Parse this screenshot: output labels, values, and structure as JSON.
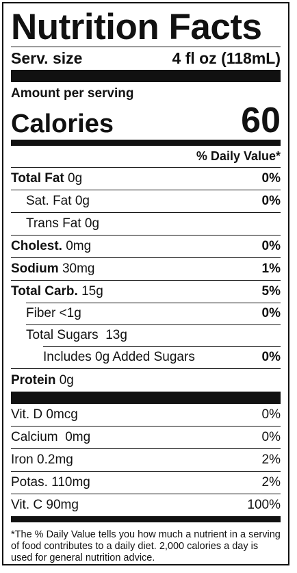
{
  "title": "Nutrition Facts",
  "serving": {
    "label": "Serv. size",
    "value": "4 fl oz (118mL)"
  },
  "amount_per_serving": "Amount per serving",
  "calories": {
    "label": "Calories",
    "value": "60"
  },
  "daily_value_header": "% Daily Value*",
  "nutrients": [
    {
      "name": "Total Fat",
      "amount": "0g",
      "dv": "0%"
    },
    {
      "name": "Sat. Fat",
      "amount": "0g",
      "dv": "0%"
    },
    {
      "name": "Trans Fat",
      "amount": "0g",
      "dv": ""
    },
    {
      "name": "Cholest.",
      "amount": "0mg",
      "dv": "0%"
    },
    {
      "name": "Sodium",
      "amount": "30mg",
      "dv": "1%"
    },
    {
      "name": "Total Carb.",
      "amount": "15g",
      "dv": "5%"
    },
    {
      "name": "Fiber",
      "amount": "<1g",
      "dv": "0%"
    },
    {
      "name": "Total Sugars",
      "amount": "13g",
      "dv": ""
    },
    {
      "name": "Includes 0g Added Sugars",
      "amount": "",
      "dv": "0%"
    },
    {
      "name": "Protein",
      "amount": "0g",
      "dv": ""
    }
  ],
  "vitamins": [
    {
      "name": "Vit. D",
      "amount": "0mcg",
      "dv": "0%"
    },
    {
      "name": "Calcium",
      "amount": "0mg",
      "dv": "0%"
    },
    {
      "name": "Iron",
      "amount": "0.2mg",
      "dv": "2%"
    },
    {
      "name": "Potas.",
      "amount": "110mg",
      "dv": "2%"
    },
    {
      "name": "Vit. C",
      "amount": "90mg",
      "dv": "100%"
    }
  ],
  "footnote": "*The % Daily Value tells you how much a nutrient in a serving of food contributes to a daily diet. 2,000 calories a day is used for general nutrition advice."
}
